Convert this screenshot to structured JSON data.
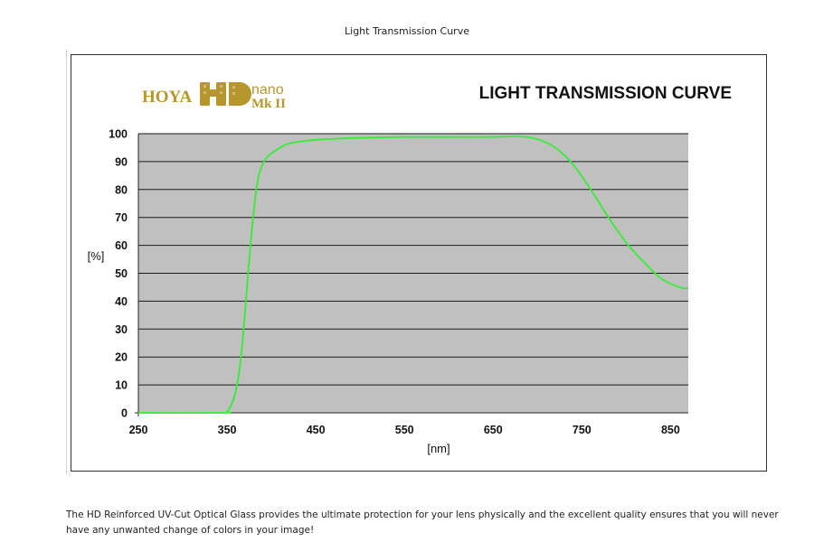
{
  "page": {
    "caption": "Light Transmission Curve",
    "description": "The HD Reinforced UV-Cut Optical Glass provides the ultimate protection for your lens physically and the excellent quality ensures that you will never have any unwanted change of colors in your image!"
  },
  "logo": {
    "brand": "HOYA",
    "mark": "HD",
    "line1": "nano",
    "line2": "Mk II",
    "color": "#b8962e"
  },
  "chart_data": {
    "type": "line",
    "title": "LIGHT TRANSMISSION CURVE",
    "xlabel": "[nm]",
    "ylabel": "[%]",
    "xlim": [
      250,
      870
    ],
    "ylim": [
      0,
      100
    ],
    "xticks": [
      250,
      350,
      450,
      550,
      650,
      750,
      850
    ],
    "yticks": [
      0,
      10,
      20,
      30,
      40,
      50,
      60,
      70,
      80,
      90,
      100
    ],
    "grid": true,
    "plot_background": "#c0c0c0",
    "series": [
      {
        "color": "#33ee33",
        "x": [
          250,
          345,
          350,
          355,
          360,
          365,
          370,
          375,
          380,
          385,
          390,
          395,
          400,
          410,
          420,
          440,
          460,
          500,
          550,
          600,
          650,
          680,
          700,
          720,
          740,
          760,
          780,
          800,
          820,
          840,
          860,
          870
        ],
        "y": [
          0,
          0,
          0.5,
          3,
          8,
          18,
          35,
          55,
          72,
          84,
          89,
          91.5,
          93,
          95,
          96.5,
          97.5,
          98,
          98.5,
          98.8,
          98.8,
          98.8,
          99,
          98,
          95,
          89,
          80,
          70,
          61,
          54,
          48,
          45,
          44.5
        ]
      }
    ]
  }
}
